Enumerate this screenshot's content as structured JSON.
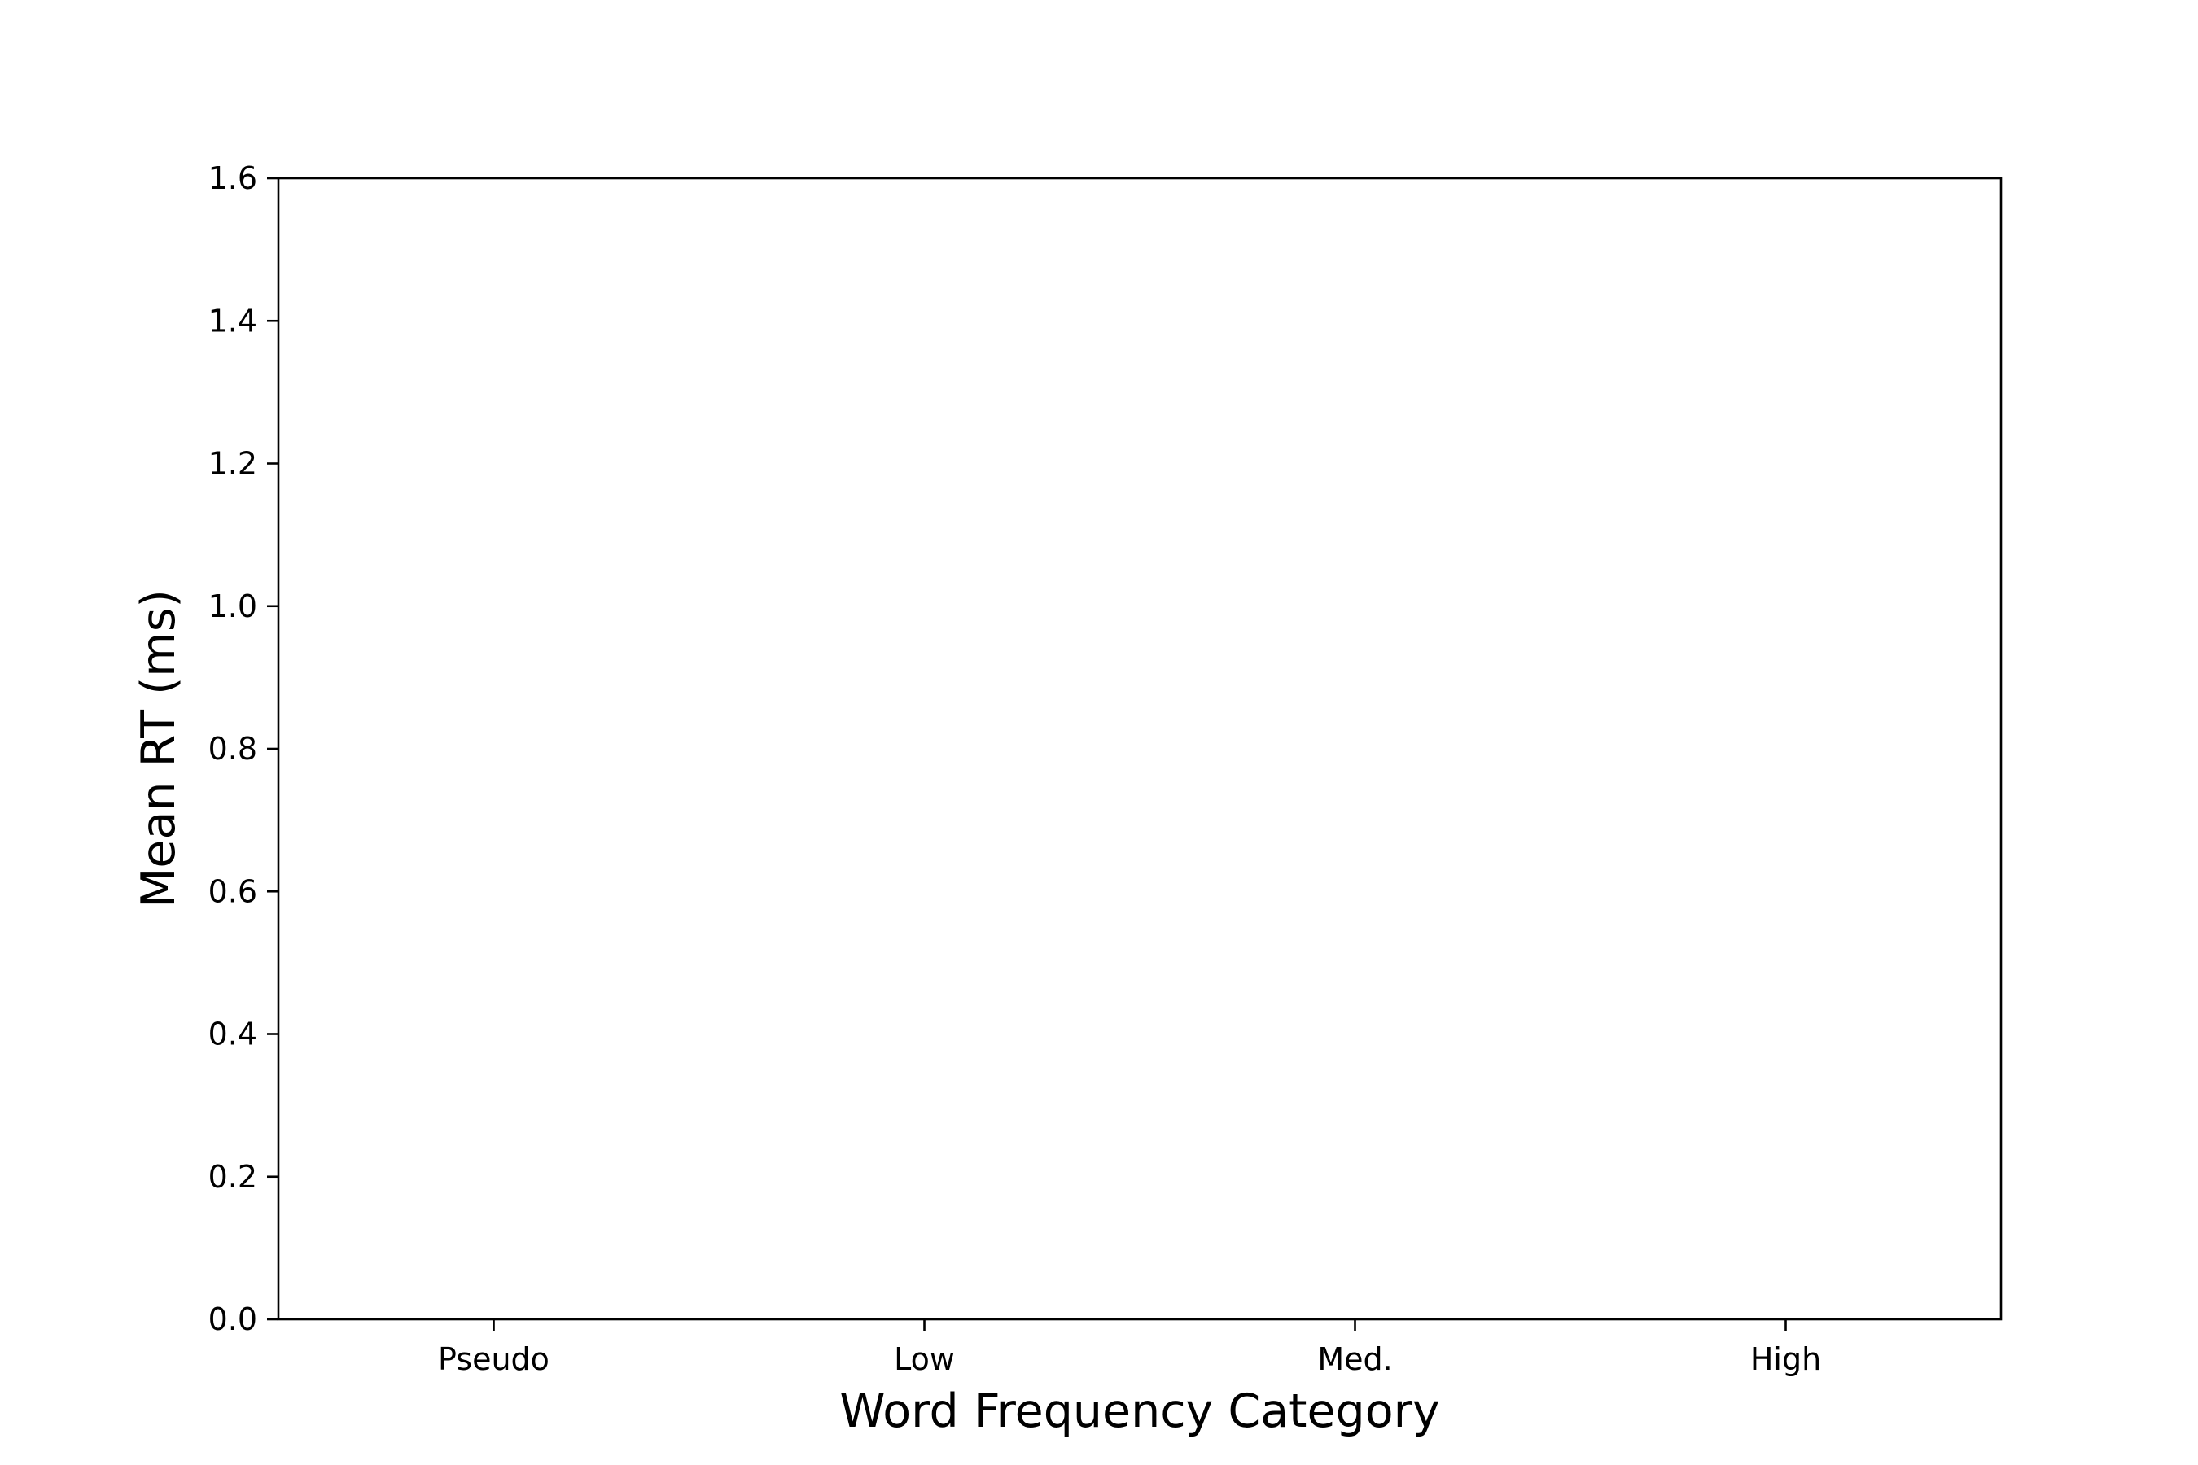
{
  "chart_data": {
    "type": "bar",
    "categories": [
      "Pseudo",
      "Low",
      "Med.",
      "High"
    ],
    "series": [],
    "title": "",
    "xlabel": "Word Frequency Category",
    "ylabel": "Mean RT (ms)",
    "ylim": [
      0.0,
      1.6
    ],
    "yticks": [
      "0.0",
      "0.2",
      "0.4",
      "0.6",
      "0.8",
      "1.0",
      "1.2",
      "1.4",
      "1.6"
    ],
    "grid": false,
    "legend": "none"
  }
}
